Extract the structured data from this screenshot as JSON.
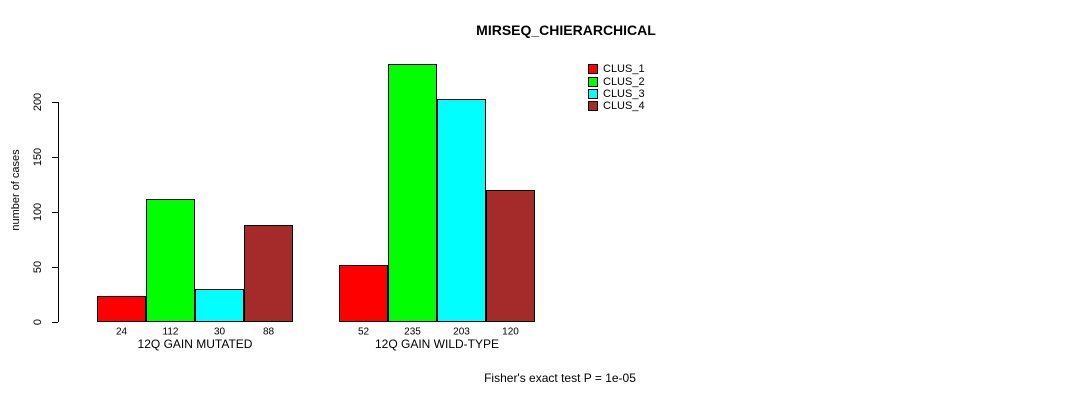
{
  "chart_data": {
    "type": "bar",
    "title": "MIRSEQ_CHIERARCHICAL",
    "ylabel": "number of cases",
    "xlabel": "",
    "categories": [
      "12Q GAIN MUTATED",
      "12Q GAIN WILD-TYPE"
    ],
    "series": [
      {
        "name": "CLUS_1",
        "color": "#ff0000",
        "values": [
          24,
          52
        ]
      },
      {
        "name": "CLUS_2",
        "color": "#00ff00",
        "values": [
          112,
          235
        ]
      },
      {
        "name": "CLUS_3",
        "color": "#00ffff",
        "values": [
          30,
          203
        ]
      },
      {
        "name": "CLUS_4",
        "color": "#a52a2a",
        "values": [
          88,
          120
        ]
      }
    ],
    "y_ticks": [
      0,
      50,
      100,
      150,
      200
    ],
    "ylim": [
      0,
      240
    ],
    "grid": false,
    "bar_value_labels_shown": true,
    "legend_position": "top-right",
    "annotation": "Fisher's exact test P = 1e-05"
  },
  "colors": {
    "background": "#ffffff",
    "text": "#000000",
    "bar_border": "#000000"
  }
}
